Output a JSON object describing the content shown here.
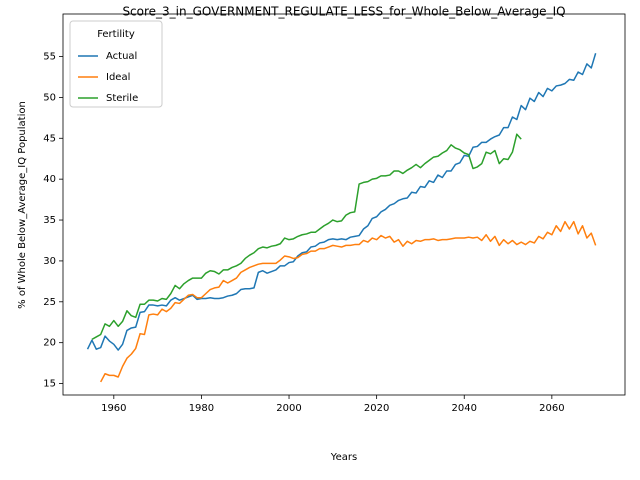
{
  "chart_data": {
    "type": "line",
    "title": "Score_3_in_GOVERNMENT_REGULATE_LESS_for_Whole_Below_Average_IQ",
    "xlabel": "Years",
    "ylabel": "% of Whole Below_Average_IQ Population",
    "legend_title": "Fertility",
    "legend": "upper left",
    "grid": false,
    "xlim": [
      1948.4,
      2076.7
    ],
    "ylim": [
      13.6,
      60.2
    ],
    "xticks": [
      1960,
      1980,
      2000,
      2020,
      2040,
      2060
    ],
    "yticks": [
      15,
      20,
      25,
      30,
      35,
      40,
      45,
      50,
      55
    ],
    "x": [
      1954,
      1955,
      1956,
      1957,
      1958,
      1959,
      1960,
      1961,
      1962,
      1963,
      1964,
      1965,
      1966,
      1967,
      1968,
      1969,
      1970,
      1971,
      1972,
      1973,
      1974,
      1975,
      1976,
      1977,
      1978,
      1979,
      1980,
      1981,
      1982,
      1983,
      1984,
      1985,
      1986,
      1987,
      1988,
      1989,
      1990,
      1991,
      1992,
      1993,
      1994,
      1995,
      1996,
      1997,
      1998,
      1999,
      2000,
      2001,
      2002,
      2003,
      2004,
      2005,
      2006,
      2007,
      2008,
      2009,
      2010,
      2011,
      2012,
      2013,
      2014,
      2015,
      2016,
      2017,
      2018,
      2019,
      2020,
      2021,
      2022,
      2023,
      2024,
      2025,
      2026,
      2027,
      2028,
      2029,
      2030,
      2031,
      2032,
      2033,
      2034,
      2035,
      2036,
      2037,
      2038,
      2039,
      2040,
      2041,
      2042,
      2043,
      2044,
      2045,
      2046,
      2047,
      2048,
      2049,
      2050,
      2051,
      2052,
      2053,
      2054,
      2055,
      2056,
      2057,
      2058,
      2059,
      2060,
      2061,
      2062,
      2063,
      2064,
      2065,
      2066,
      2067,
      2068,
      2069,
      2070
    ],
    "series": [
      {
        "name": "Actual",
        "color": "#1f77b4",
        "values": [
          19.2,
          20.3,
          19.2,
          19.4,
          20.8,
          20.2,
          19.8,
          19.1,
          19.8,
          21.5,
          21.8,
          21.9,
          23.7,
          23.8,
          24.6,
          24.6,
          24.5,
          24.6,
          24.5,
          25.2,
          25.5,
          25.2,
          25.4,
          25.6,
          25.8,
          25.3,
          25.4,
          25.4,
          25.5,
          25.4,
          25.4,
          25.5,
          25.7,
          25.8,
          26.0,
          26.5,
          26.6,
          26.6,
          26.7,
          28.6,
          28.8,
          28.5,
          28.7,
          28.9,
          29.4,
          29.4,
          29.8,
          29.9,
          30.6,
          31.0,
          31.1,
          31.7,
          31.8,
          32.2,
          32.3,
          32.6,
          32.7,
          32.6,
          32.7,
          32.6,
          32.9,
          33.0,
          33.1,
          33.9,
          34.3,
          35.2,
          35.4,
          36.0,
          36.3,
          36.8,
          37.0,
          37.4,
          37.6,
          37.7,
          38.4,
          38.3,
          39.1,
          39.0,
          39.8,
          39.6,
          40.5,
          40.2,
          41.0,
          41.0,
          41.8,
          42.0,
          42.9,
          42.8,
          43.9,
          44.0,
          44.5,
          44.5,
          44.9,
          45.2,
          45.4,
          46.3,
          46.3,
          47.6,
          47.3,
          49.0,
          48.5,
          49.9,
          49.5,
          50.6,
          50.1,
          51.1,
          50.8,
          51.4,
          51.5,
          51.7,
          52.2,
          52.1,
          53.1,
          52.8,
          54.1,
          53.6,
          55.4
        ]
      },
      {
        "name": "Ideal",
        "color": "#ff7f0e",
        "values": [
          null,
          null,
          null,
          15.2,
          16.2,
          16.0,
          16.0,
          15.8,
          17.1,
          18.1,
          18.6,
          19.3,
          21.1,
          21.0,
          23.4,
          23.5,
          23.4,
          24.1,
          23.8,
          24.2,
          24.9,
          24.8,
          25.3,
          25.8,
          25.9,
          25.5,
          25.5,
          26.0,
          26.5,
          26.7,
          26.8,
          27.6,
          27.3,
          27.6,
          27.9,
          28.6,
          28.9,
          29.2,
          29.4,
          29.6,
          29.7,
          29.7,
          29.7,
          29.7,
          30.1,
          30.6,
          30.5,
          30.3,
          30.4,
          30.8,
          30.9,
          31.2,
          31.2,
          31.5,
          31.5,
          31.7,
          31.9,
          31.8,
          31.7,
          31.9,
          31.9,
          32.0,
          32.0,
          32.5,
          32.3,
          32.8,
          32.6,
          33.1,
          32.8,
          33.0,
          32.3,
          32.6,
          31.8,
          32.4,
          32.1,
          32.5,
          32.4,
          32.6,
          32.6,
          32.7,
          32.5,
          32.6,
          32.6,
          32.7,
          32.8,
          32.8,
          32.8,
          32.9,
          32.8,
          32.9,
          32.5,
          33.2,
          32.4,
          33.0,
          31.9,
          32.6,
          32.1,
          32.5,
          32.0,
          32.3,
          32.0,
          32.4,
          32.2,
          33.0,
          32.7,
          33.5,
          33.2,
          34.3,
          33.6,
          34.8,
          33.9,
          34.8,
          33.3,
          34.3,
          32.8,
          33.4,
          31.9
        ]
      },
      {
        "name": "Sterile",
        "color": "#2ca02c",
        "values": [
          null,
          20.4,
          20.7,
          21.0,
          22.3,
          22.0,
          22.7,
          22.0,
          22.6,
          23.9,
          23.3,
          23.1,
          24.7,
          24.7,
          25.2,
          25.2,
          25.1,
          25.4,
          25.3,
          26.0,
          27.0,
          26.6,
          27.2,
          27.6,
          27.9,
          27.9,
          27.9,
          28.5,
          28.8,
          28.7,
          28.4,
          28.9,
          28.9,
          29.2,
          29.4,
          29.7,
          30.3,
          30.7,
          31.0,
          31.5,
          31.7,
          31.6,
          31.8,
          31.9,
          32.1,
          32.8,
          32.6,
          32.7,
          33.0,
          33.2,
          33.3,
          33.5,
          33.5,
          33.9,
          34.3,
          34.6,
          35.0,
          34.8,
          34.9,
          35.6,
          35.9,
          36.0,
          39.4,
          39.6,
          39.7,
          40.0,
          40.1,
          40.4,
          40.4,
          40.5,
          41.0,
          41.0,
          40.7,
          41.1,
          41.4,
          41.8,
          41.4,
          41.9,
          42.3,
          42.7,
          42.8,
          43.2,
          43.5,
          44.2,
          43.8,
          43.6,
          43.2,
          43.0,
          41.3,
          41.5,
          41.9,
          43.3,
          43.1,
          43.5,
          41.9,
          42.5,
          42.4,
          43.3,
          45.5,
          44.9,
          null,
          null,
          null,
          null,
          null,
          null,
          null,
          null,
          null,
          null,
          null,
          null,
          null,
          null,
          null,
          null,
          null
        ]
      }
    ]
  }
}
